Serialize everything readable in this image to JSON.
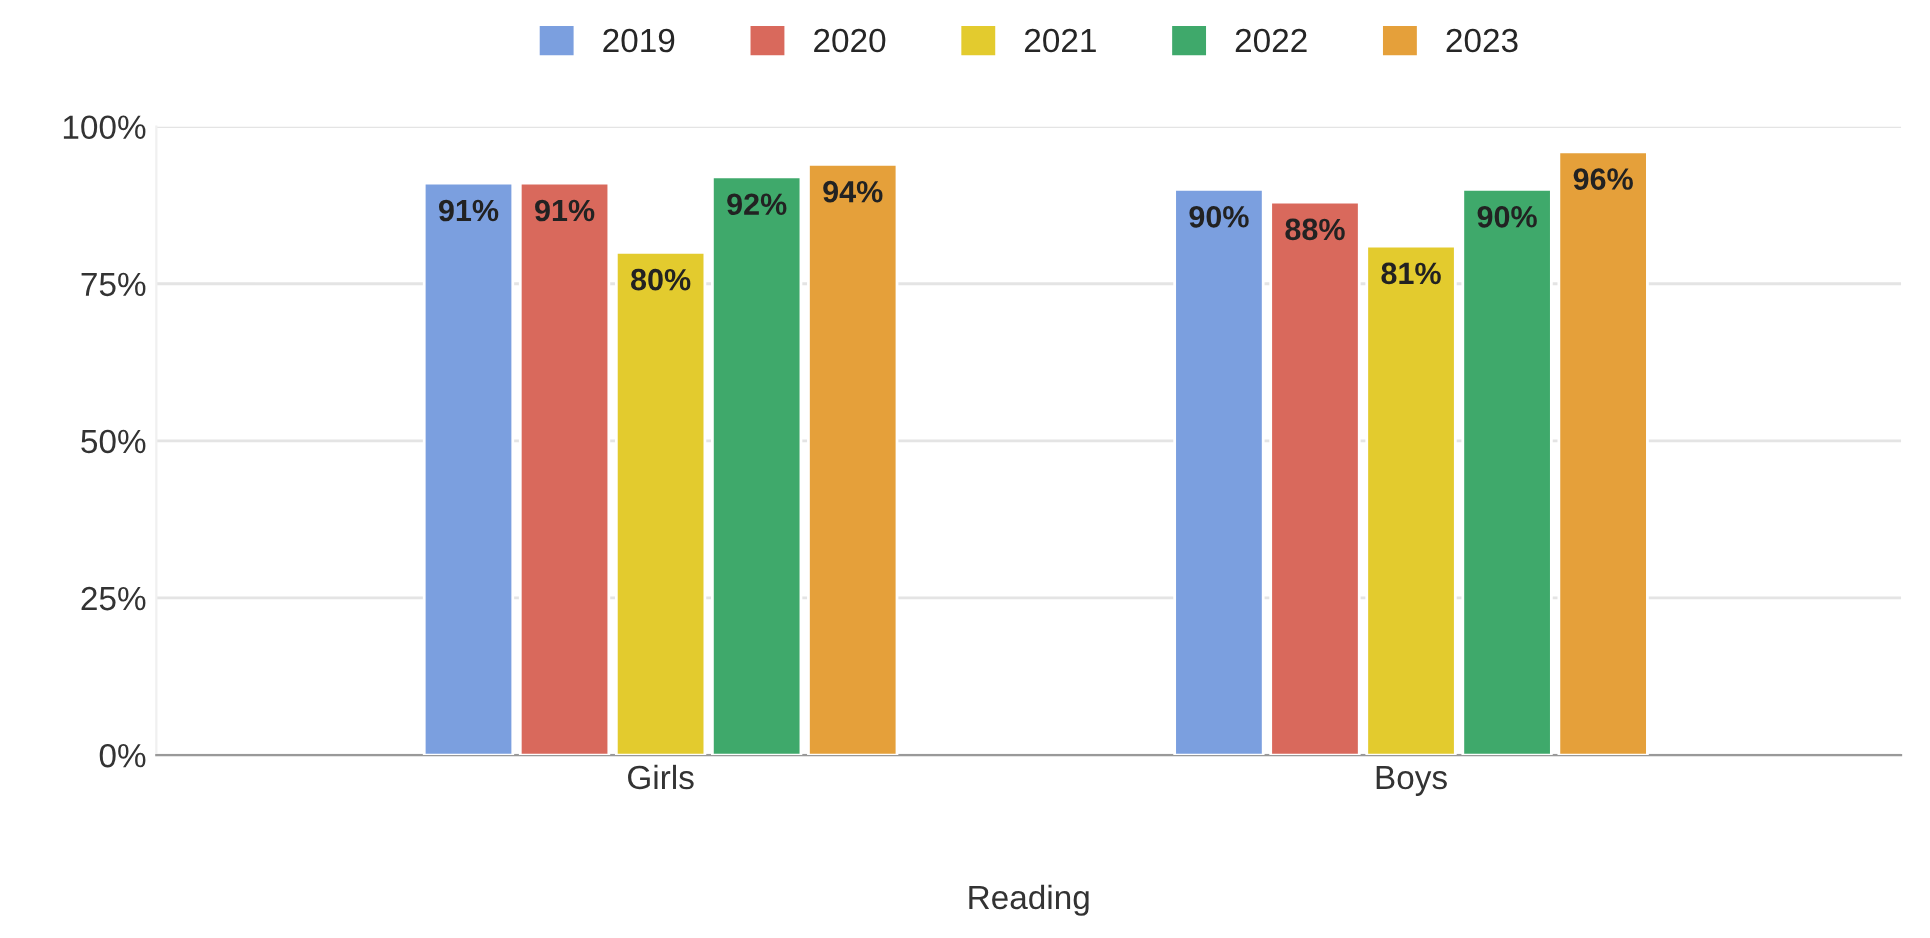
{
  "chart_data": {
    "type": "bar",
    "xlabel": "Reading",
    "categories": [
      "Girls",
      "Boys"
    ],
    "series": [
      {
        "name": "2019",
        "color": "#7b9fdf",
        "values": [
          91,
          90
        ],
        "value_labels": [
          "91%",
          "90%"
        ]
      },
      {
        "name": "2020",
        "color": "#d9695c",
        "values": [
          91,
          88
        ],
        "value_labels": [
          "91%",
          "88%"
        ]
      },
      {
        "name": "2021",
        "color": "#e3cb2e",
        "values": [
          80,
          81
        ],
        "value_labels": [
          "80%",
          "81%"
        ]
      },
      {
        "name": "2022",
        "color": "#3fa96b",
        "values": [
          92,
          90
        ],
        "value_labels": [
          "92%",
          "90%"
        ]
      },
      {
        "name": "2023",
        "color": "#e5a03a",
        "values": [
          94,
          96
        ],
        "value_labels": [
          "94%",
          "96%"
        ]
      }
    ],
    "ylim": [
      0,
      100
    ],
    "yticks": [
      {
        "value": 0,
        "label": "0%"
      },
      {
        "value": 25,
        "label": "25%"
      },
      {
        "value": 50,
        "label": "50%"
      },
      {
        "value": 75,
        "label": "75%"
      },
      {
        "value": 100,
        "label": "100%"
      }
    ],
    "grid": "y",
    "legend": "top"
  }
}
